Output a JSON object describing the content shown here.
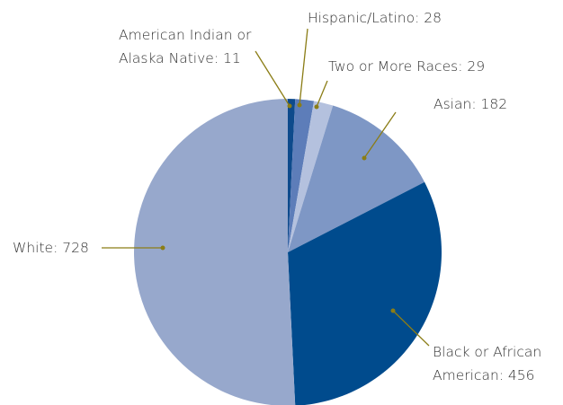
{
  "chart_data": {
    "type": "pie",
    "categories": [
      "American Indian or Alaska Native",
      "Hispanic/Latino",
      "Two or More Races",
      "Asian",
      "Black or African American",
      "White"
    ],
    "values": [
      11,
      28,
      29,
      182,
      456,
      728
    ],
    "colors": [
      "#0d4a8c",
      "#5d7db9",
      "#b4c1de",
      "#7e97c5",
      "#004b8d",
      "#97a8cc"
    ],
    "label_separator": ": "
  }
}
